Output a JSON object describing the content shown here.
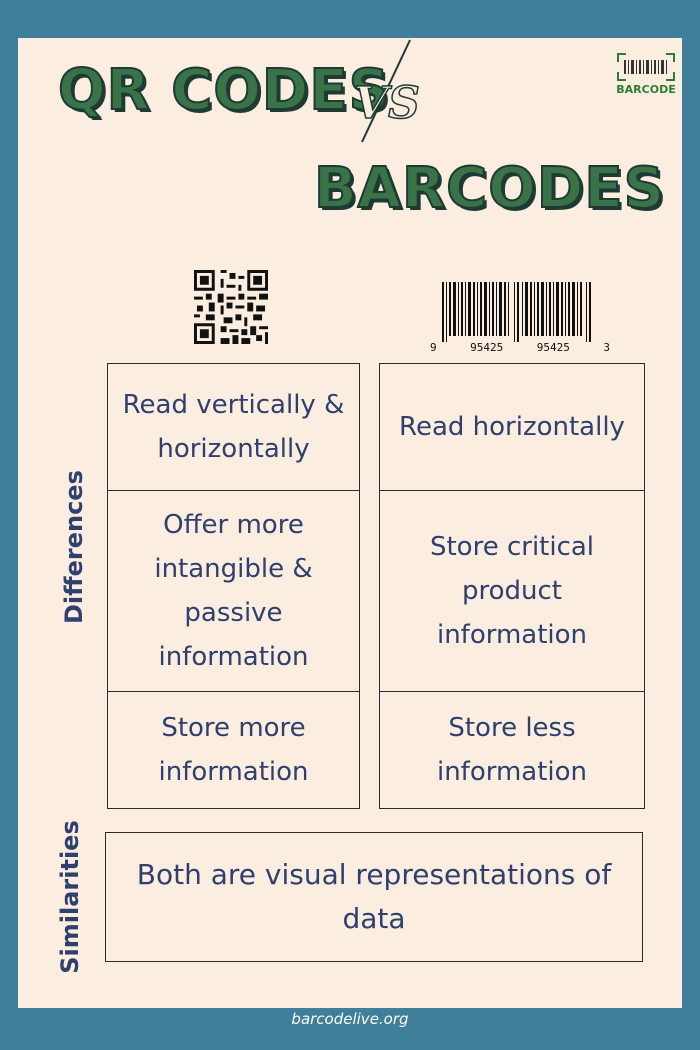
{
  "header": {
    "title_left": "QR CODES",
    "vs": "VS",
    "title_right": "BARCODES",
    "logo_text": "BARCODE"
  },
  "barcode_digits": [
    "9",
    "95425",
    "95425",
    "3"
  ],
  "sections": {
    "differences_label": "Differences",
    "similarities_label": "Similarities"
  },
  "differences": [
    {
      "qr": "Read vertically & horizontally",
      "barcode": "Read horizontally"
    },
    {
      "qr": "Offer more intangible & passive information",
      "barcode": "Store critical product information"
    },
    {
      "qr": "Store more information",
      "barcode": "Store less information"
    }
  ],
  "similarity": "Both are visual representations of data",
  "footer": "barcodelive.org",
  "colors": {
    "frame": "#3f7f9a",
    "card": "#fbeee0",
    "title_green": "#3a7347",
    "text_navy": "#2f3f6e"
  }
}
